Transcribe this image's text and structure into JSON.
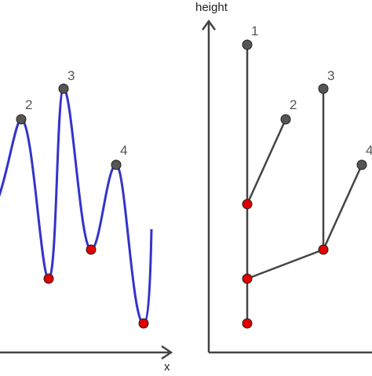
{
  "left_panel": {
    "x_axis_label": "x",
    "peak_labels": [
      "2",
      "3",
      "4"
    ]
  },
  "right_panel": {
    "y_axis_label": "height",
    "leaf_labels": [
      "1",
      "2",
      "3",
      "4"
    ]
  },
  "colors": {
    "curve": "#3333cc",
    "tree_edge": "#444444",
    "axis": "#444444",
    "maximum_point": "#555555",
    "minimum_point": "#e00000"
  }
}
